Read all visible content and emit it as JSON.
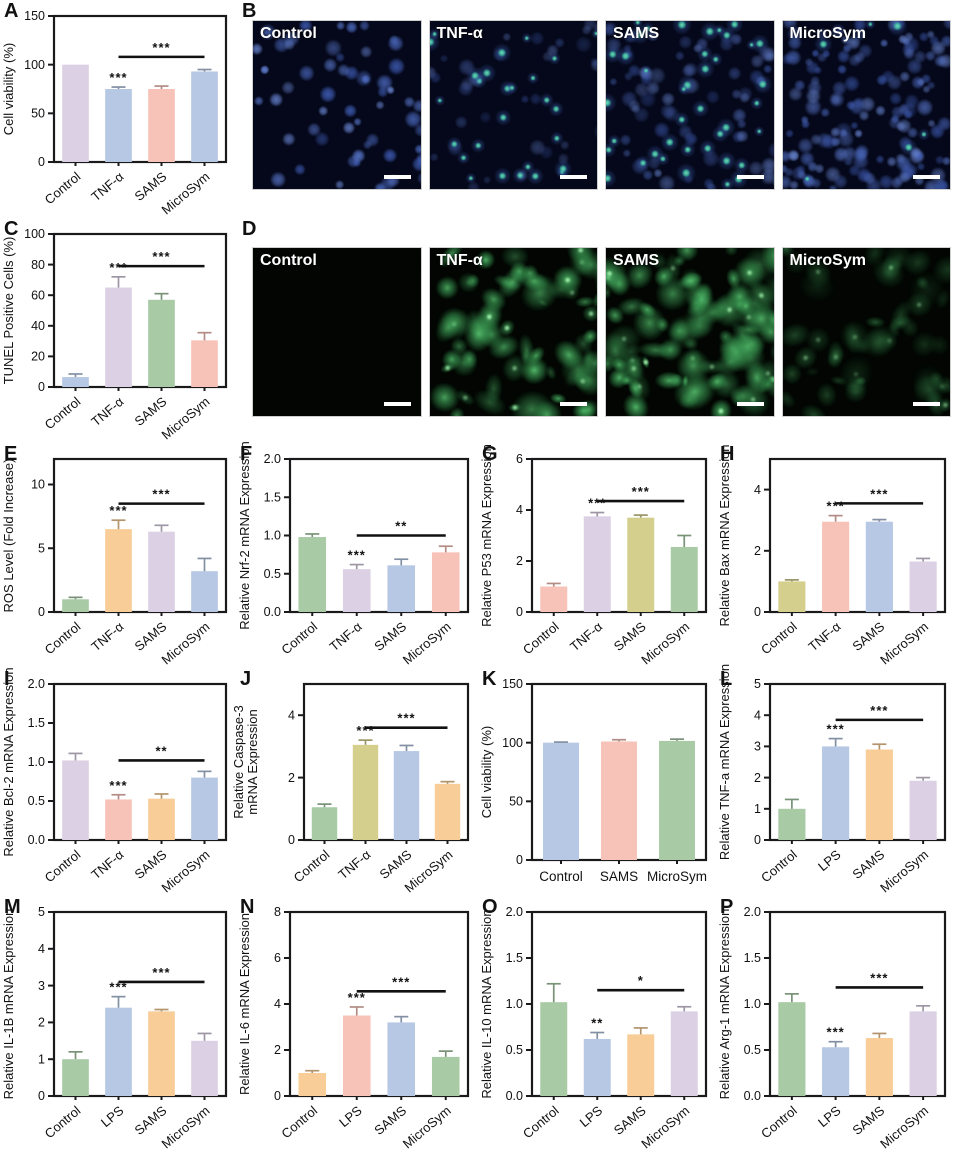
{
  "palette": {
    "lavender": "#dcd0e4",
    "blue": "#b6c8e4",
    "salmon": "#f7c3b9",
    "green": "#a8cba6",
    "orange": "#f8cd98",
    "olive": "#d5cf8d",
    "axis": "#1a1a1c",
    "sig": "#111111",
    "micro_blue_bg": "#05081a",
    "micro_green_bg": "#020502"
  },
  "chart_data": [
    {
      "panel": "A",
      "type": "bar",
      "ylabel": "Cell viability (%)",
      "categories": [
        "Control",
        "TNF-α",
        "SAMS",
        "MicroSym"
      ],
      "values": [
        100,
        75,
        75,
        93
      ],
      "errors": [
        0,
        2,
        3,
        2
      ],
      "bar_colors": [
        "lavender",
        "blue",
        "salmon",
        "blue"
      ],
      "ylim": [
        0,
        150
      ],
      "yticks": [
        "0",
        "50",
        "100",
        "150"
      ],
      "sig_above": {
        "bar": 1,
        "label": "***"
      },
      "sig_line": {
        "from": 1,
        "to": 3,
        "y": 108,
        "label": "***"
      },
      "x_rotated": true
    },
    {
      "panel": "C",
      "type": "bar",
      "ylabel": "TUNEL Positive Cells (%)",
      "categories": [
        "Control",
        "TNF-α",
        "SAMS",
        "MicroSym"
      ],
      "values": [
        6.5,
        65,
        57,
        30.5
      ],
      "errors": [
        2,
        7,
        4,
        5
      ],
      "bar_colors": [
        "blue",
        "lavender",
        "green",
        "salmon"
      ],
      "ylim": [
        0,
        100
      ],
      "yticks": [
        "0",
        "20",
        "40",
        "60",
        "80",
        "100"
      ],
      "sig_above": {
        "bar": 1,
        "label": "***"
      },
      "sig_line": {
        "from": 1,
        "to": 3,
        "y": 79,
        "label": "***"
      },
      "x_rotated": true
    },
    {
      "panel": "E",
      "type": "bar",
      "ylabel": "ROS Level (Fold Increase)",
      "categories": [
        "Control",
        "TNF-α",
        "SAMS",
        "MicroSym"
      ],
      "values": [
        1,
        6.5,
        6.3,
        3.2
      ],
      "errors": [
        0.15,
        0.7,
        0.5,
        1.0
      ],
      "bar_colors": [
        "green",
        "orange",
        "lavender",
        "blue"
      ],
      "ylim": [
        0,
        12
      ],
      "yticks": [
        "0",
        "5",
        "10"
      ],
      "sig_above": {
        "bar": 1,
        "label": "***"
      },
      "sig_line": {
        "from": 1,
        "to": 3,
        "y": 8.5,
        "label": "***"
      },
      "x_rotated": true
    },
    {
      "panel": "F",
      "type": "bar",
      "ylabel": "Relative Nrf-2 mRNA Expression",
      "categories": [
        "Control",
        "TNF-α",
        "SAMS",
        "MicroSym"
      ],
      "values": [
        0.98,
        0.56,
        0.61,
        0.78
      ],
      "errors": [
        0.04,
        0.06,
        0.08,
        0.08
      ],
      "bar_colors": [
        "green",
        "lavender",
        "blue",
        "salmon"
      ],
      "ylim": [
        0,
        2
      ],
      "yticks": [
        "0.0",
        "0.5",
        "1.0",
        "1.5",
        "2.0"
      ],
      "sig_above": {
        "bar": 1,
        "label": "***"
      },
      "sig_line": {
        "from": 1,
        "to": 3,
        "y": 1.0,
        "label": "**"
      },
      "x_rotated": true
    },
    {
      "panel": "G",
      "type": "bar",
      "ylabel": "Relative P53 mRNA Expression",
      "categories": [
        "Control",
        "TNF-α",
        "SAMS",
        "MicroSym"
      ],
      "values": [
        1.0,
        3.75,
        3.7,
        2.55
      ],
      "errors": [
        0.12,
        0.15,
        0.1,
        0.45
      ],
      "bar_colors": [
        "salmon",
        "lavender",
        "olive",
        "green"
      ],
      "ylim": [
        0,
        6
      ],
      "yticks": [
        "0",
        "2",
        "4",
        "6"
      ],
      "sig_above": {
        "bar": 1,
        "label": "***"
      },
      "sig_line": {
        "from": 1,
        "to": 3,
        "y": 4.35,
        "label": "***"
      },
      "x_rotated": true
    },
    {
      "panel": "H",
      "type": "bar",
      "ylabel": "Relative Bax mRNA Expression",
      "categories": [
        "Control",
        "TNF-α",
        "SAMS",
        "MicroSym"
      ],
      "values": [
        1.0,
        2.95,
        2.95,
        1.65
      ],
      "errors": [
        0.05,
        0.2,
        0.07,
        0.1
      ],
      "bar_colors": [
        "olive",
        "salmon",
        "blue",
        "lavender"
      ],
      "ylim": [
        0,
        5
      ],
      "yticks": [
        "0",
        "2",
        "4"
      ],
      "sig_above": {
        "bar": 1,
        "label": "***"
      },
      "sig_line": {
        "from": 1,
        "to": 3,
        "y": 3.55,
        "label": "***"
      },
      "x_rotated": true
    },
    {
      "panel": "I",
      "type": "bar",
      "ylabel": "Relative Bcl-2 mRNA Expression",
      "categories": [
        "Control",
        "TNF-α",
        "SAMS",
        "MicroSym"
      ],
      "values": [
        1.02,
        0.52,
        0.53,
        0.8
      ],
      "errors": [
        0.09,
        0.06,
        0.06,
        0.08
      ],
      "bar_colors": [
        "lavender",
        "salmon",
        "orange",
        "blue"
      ],
      "ylim": [
        0,
        2
      ],
      "yticks": [
        "0.0",
        "0.5",
        "1.0",
        "1.5",
        "2.0"
      ],
      "sig_above": {
        "bar": 1,
        "label": "***"
      },
      "sig_line": {
        "from": 1,
        "to": 3,
        "y": 1.02,
        "label": "**"
      },
      "x_rotated": true
    },
    {
      "panel": "J",
      "type": "bar",
      "ylabel": "Relative Caspase-3\nmRNA Expression",
      "categories": [
        "Control",
        "TNF-α",
        "SAMS",
        "MicroSym"
      ],
      "values": [
        1.05,
        3.05,
        2.85,
        1.8
      ],
      "errors": [
        0.1,
        0.15,
        0.18,
        0.07
      ],
      "bar_colors": [
        "green",
        "olive",
        "blue",
        "orange"
      ],
      "ylim": [
        0,
        5
      ],
      "yticks": [
        "0",
        "2",
        "4"
      ],
      "sig_above": {
        "bar": 1,
        "label": "***"
      },
      "sig_line": {
        "from": 1,
        "to": 3,
        "y": 3.6,
        "label": "***"
      },
      "x_rotated": true
    },
    {
      "panel": "K",
      "type": "bar",
      "ylabel": "Cell viability (%)",
      "categories": [
        "Control",
        "SAMS",
        "MicroSym"
      ],
      "values": [
        100,
        101,
        101.5
      ],
      "errors": [
        0.5,
        1.5,
        1.5
      ],
      "bar_colors": [
        "blue",
        "salmon",
        "green"
      ],
      "ylim": [
        0,
        150
      ],
      "yticks": [
        "0",
        "50",
        "100",
        "150"
      ],
      "sig_above": null,
      "sig_line": null,
      "x_rotated": false
    },
    {
      "panel": "L",
      "type": "bar",
      "ylabel": "Relative TNF-a mRNA Expression",
      "categories": [
        "Control",
        "LPS",
        "SAMS",
        "MicroSym"
      ],
      "values": [
        1.0,
        3.0,
        2.9,
        1.9
      ],
      "errors": [
        0.3,
        0.25,
        0.17,
        0.1
      ],
      "bar_colors": [
        "green",
        "blue",
        "orange",
        "lavender"
      ],
      "ylim": [
        0,
        5
      ],
      "yticks": [
        "0",
        "1",
        "2",
        "3",
        "4",
        "5"
      ],
      "sig_above": {
        "bar": 1,
        "label": "***"
      },
      "sig_line": {
        "from": 1,
        "to": 3,
        "y": 3.85,
        "label": "***"
      },
      "x_rotated": true
    },
    {
      "panel": "M",
      "type": "bar",
      "ylabel": "Relative IL-1B mRNA Expression",
      "categories": [
        "Control",
        "LPS",
        "SAMS",
        "MicroSym"
      ],
      "values": [
        1.0,
        2.4,
        2.3,
        1.5
      ],
      "errors": [
        0.2,
        0.3,
        0.05,
        0.2
      ],
      "bar_colors": [
        "green",
        "blue",
        "orange",
        "lavender"
      ],
      "ylim": [
        0,
        5
      ],
      "yticks": [
        "0",
        "1",
        "2",
        "3",
        "4",
        "5"
      ],
      "sig_above": {
        "bar": 1,
        "label": "***"
      },
      "sig_line": {
        "from": 1,
        "to": 3,
        "y": 3.1,
        "label": "***"
      },
      "x_rotated": true
    },
    {
      "panel": "N",
      "type": "bar",
      "ylabel": "Relative IL-6 mRNA Expression",
      "categories": [
        "Control",
        "LPS",
        "SAMS",
        "MicroSym"
      ],
      "values": [
        1.0,
        3.5,
        3.2,
        1.7
      ],
      "errors": [
        0.1,
        0.37,
        0.25,
        0.25
      ],
      "bar_colors": [
        "orange",
        "salmon",
        "blue",
        "green"
      ],
      "ylim": [
        0,
        8
      ],
      "yticks": [
        "0",
        "2",
        "4",
        "6",
        "8"
      ],
      "sig_above": {
        "bar": 1,
        "label": "***"
      },
      "sig_line": {
        "from": 1,
        "to": 3,
        "y": 4.55,
        "label": "***"
      },
      "x_rotated": true
    },
    {
      "panel": "O",
      "type": "bar",
      "ylabel": "Relative IL-10 mRNA Expression",
      "categories": [
        "Control",
        "LPS",
        "SAMS",
        "MicroSym"
      ],
      "values": [
        1.02,
        0.62,
        0.67,
        0.92
      ],
      "errors": [
        0.2,
        0.07,
        0.07,
        0.05
      ],
      "bar_colors": [
        "green",
        "blue",
        "orange",
        "lavender"
      ],
      "ylim": [
        0,
        2
      ],
      "yticks": [
        "0.0",
        "0.5",
        "1.0",
        "1.5",
        "2.0"
      ],
      "sig_above": {
        "bar": 1,
        "label": "**"
      },
      "sig_line": {
        "from": 1,
        "to": 3,
        "y": 1.15,
        "label": "*"
      },
      "x_rotated": true
    },
    {
      "panel": "P",
      "type": "bar",
      "ylabel": "Relative Arg-1 mRNA Expression",
      "categories": [
        "Control",
        "LPS",
        "SAMS",
        "MicroSym"
      ],
      "values": [
        1.02,
        0.53,
        0.63,
        0.92
      ],
      "errors": [
        0.09,
        0.06,
        0.05,
        0.06
      ],
      "bar_colors": [
        "green",
        "blue",
        "orange",
        "lavender"
      ],
      "ylim": [
        0,
        2
      ],
      "yticks": [
        "0.0",
        "0.5",
        "1.0",
        "1.5",
        "2.0"
      ],
      "sig_above": {
        "bar": 1,
        "label": "***"
      },
      "sig_line": {
        "from": 1,
        "to": 3,
        "y": 1.18,
        "label": "***"
      },
      "x_rotated": true
    }
  ],
  "micro_panels": [
    {
      "panel": "B",
      "kind": "nuclei",
      "images": [
        {
          "label": "Control",
          "blue": 230,
          "green": 0,
          "blue_alpha": 0.85
        },
        {
          "label": "TNF-α",
          "blue": 60,
          "green": 52,
          "blue_alpha": 0.4
        },
        {
          "label": "SAMS",
          "blue": 90,
          "green": 46,
          "blue_alpha": 0.55
        },
        {
          "label": "MicroSym",
          "blue": 150,
          "green": 6,
          "blue_alpha": 0.7
        }
      ]
    },
    {
      "panel": "D",
      "kind": "cells",
      "images": [
        {
          "label": "Control",
          "cells": 3,
          "intensity": 0.06
        },
        {
          "label": "TNF-α",
          "cells": 120,
          "intensity": 0.85
        },
        {
          "label": "SAMS",
          "cells": 115,
          "intensity": 0.85
        },
        {
          "label": "MicroSym",
          "cells": 50,
          "intensity": 0.38
        }
      ]
    }
  ]
}
